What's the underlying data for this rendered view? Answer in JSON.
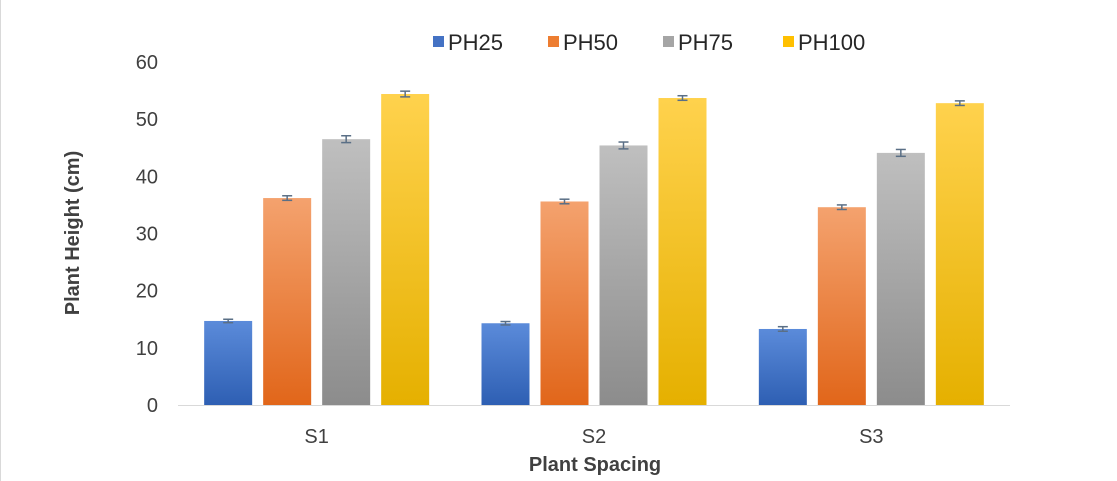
{
  "chart_data": {
    "type": "bar",
    "title": "",
    "xlabel": "Plant Spacing",
    "ylabel": "Plant Height (cm)",
    "categories": [
      "S1",
      "S2",
      "S3"
    ],
    "ylim": [
      0,
      60
    ],
    "yticks": [
      0,
      10,
      20,
      30,
      40,
      50,
      60
    ],
    "grid": false,
    "legend_position": "top",
    "error_bars": true,
    "series": [
      {
        "name": "PH25",
        "values": [
          14.7,
          14.3,
          13.3
        ],
        "errors": [
          0.3,
          0.3,
          0.4
        ],
        "color": "#4472C4",
        "gradient": [
          "#5B8BDA",
          "#2E5FB3"
        ]
      },
      {
        "name": "PH50",
        "values": [
          36.2,
          35.6,
          34.6
        ],
        "errors": [
          0.4,
          0.4,
          0.4
        ],
        "color": "#ED7D31",
        "gradient": [
          "#F4A26E",
          "#E1661A"
        ]
      },
      {
        "name": "PH75",
        "values": [
          46.5,
          45.4,
          44.1
        ],
        "errors": [
          0.6,
          0.6,
          0.6
        ],
        "color": "#A5A5A5",
        "gradient": [
          "#BFBFBF",
          "#8C8C8C"
        ]
      },
      {
        "name": "PH100",
        "values": [
          54.4,
          53.7,
          52.8
        ],
        "errors": [
          0.5,
          0.4,
          0.4
        ],
        "color": "#FFC000",
        "gradient": [
          "#FFD24D",
          "#E5B000"
        ]
      }
    ]
  }
}
